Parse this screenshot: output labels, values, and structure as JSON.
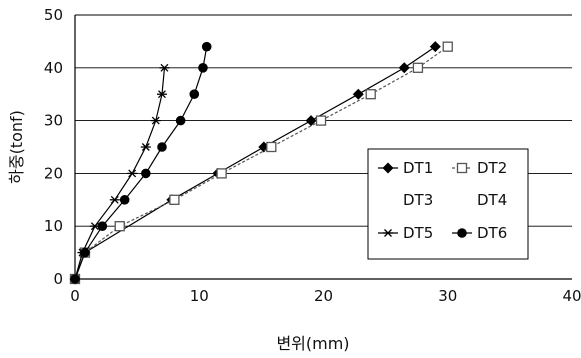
{
  "chart_data": {
    "type": "line",
    "xlabel": "변위(mm)",
    "ylabel": "하중(tonf)",
    "xlim": [
      0,
      40
    ],
    "ylim": [
      0,
      50
    ],
    "x_ticks": [
      "0",
      "10",
      "20",
      "30",
      "40"
    ],
    "y_ticks": [
      "0",
      "10",
      "20",
      "30",
      "40",
      "50"
    ],
    "grid": "horizontal",
    "legend_position": "right",
    "series": [
      {
        "name": "DT1",
        "marker": "diamond",
        "line_style": "solid",
        "color": "#000000",
        "x": [
          0,
          0.8,
          7.8,
          11.5,
          15.2,
          19.0,
          22.8,
          26.5,
          29.0
        ],
        "y": [
          0,
          5,
          15,
          20,
          25,
          30,
          35,
          40,
          44
        ]
      },
      {
        "name": "DT2",
        "marker": "square-open",
        "line_style": "dashed",
        "color": "#555555",
        "x": [
          0,
          0.8,
          3.6,
          8.0,
          11.8,
          15.8,
          19.8,
          23.8,
          27.6,
          30.0
        ],
        "y": [
          0,
          5,
          10,
          15,
          20,
          25,
          30,
          35,
          40,
          44
        ]
      },
      {
        "name": "DT3",
        "marker": "none",
        "line_style": "none",
        "color": "#000000",
        "x": [],
        "y": []
      },
      {
        "name": "DT4",
        "marker": "none",
        "line_style": "none",
        "color": "#000000",
        "x": [],
        "y": []
      },
      {
        "name": "DT5",
        "marker": "asterisk",
        "line_style": "solid",
        "color": "#000000",
        "x": [
          0,
          0.6,
          1.6,
          3.2,
          4.6,
          5.7,
          6.5,
          7.0,
          7.2
        ],
        "y": [
          0,
          5,
          10,
          15,
          20,
          25,
          30,
          35,
          40
        ]
      },
      {
        "name": "DT6",
        "marker": "circle",
        "line_style": "solid",
        "color": "#000000",
        "x": [
          0,
          0.8,
          2.2,
          4.0,
          5.7,
          7.0,
          8.5,
          9.6,
          10.3,
          10.6
        ],
        "y": [
          0,
          5,
          10,
          15,
          20,
          25,
          30,
          35,
          40,
          44
        ]
      }
    ]
  }
}
